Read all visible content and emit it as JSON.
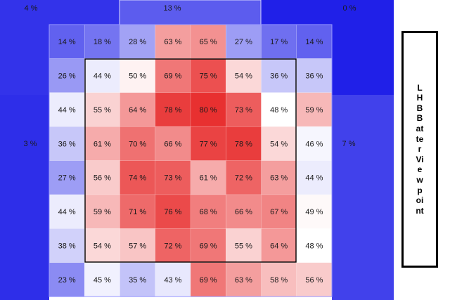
{
  "chart_data": {
    "type": "heatmap",
    "viewpoint_label": "LHB Batter Viewpoint",
    "unit": "%",
    "color_scale": {
      "low": "#2020e8",
      "mid": "#ffffff",
      "high": "#e83030",
      "low_value": 0,
      "mid_value": 48,
      "high_value": 80
    },
    "outer_zones": {
      "top_left": 4,
      "top": 13,
      "top_right": 0,
      "left": 3,
      "right": 7
    },
    "grid": [
      [
        14,
        18,
        28,
        63,
        65,
        27,
        17,
        14
      ],
      [
        26,
        44,
        50,
        69,
        75,
        54,
        36,
        36
      ],
      [
        44,
        55,
        64,
        78,
        80,
        73,
        48,
        59
      ],
      [
        36,
        61,
        70,
        66,
        77,
        78,
        54,
        46
      ],
      [
        27,
        56,
        74,
        73,
        61,
        72,
        63,
        44
      ],
      [
        44,
        59,
        71,
        76,
        68,
        66,
        67,
        49
      ],
      [
        38,
        54,
        57,
        72,
        69,
        55,
        64,
        48
      ],
      [
        23,
        45,
        35,
        43,
        69,
        63,
        58,
        56
      ]
    ]
  }
}
